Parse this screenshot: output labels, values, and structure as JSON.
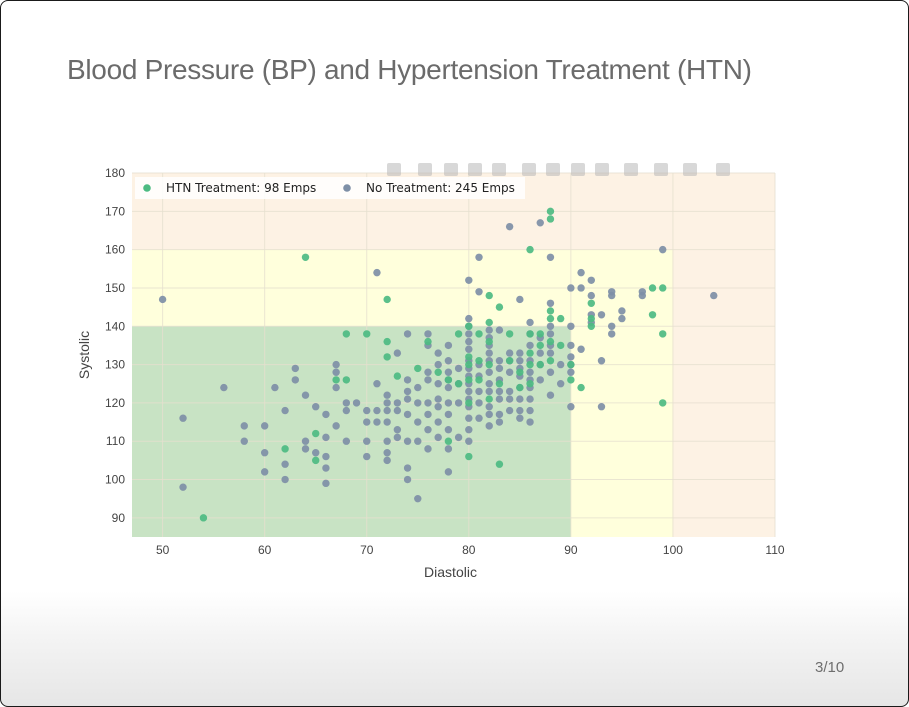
{
  "slide": {
    "title": "Blood Pressure (BP) and Hypertension Treatment (HTN)",
    "page_number": "3/10"
  },
  "colors": {
    "htn": "#4dbb82",
    "no_treatment": "#7e8fa6",
    "zone_normal": "#c8e3c4",
    "zone_elevated": "#ffffdc",
    "zone_high": "#fdf2e4"
  },
  "toolbar_icons": [
    "camera-icon",
    "zoom-icon",
    "pan-icon",
    "box-select-icon",
    "lasso-icon",
    "zoom-in-icon",
    "zoom-out-icon",
    "autoscale-icon",
    "reset-axes-icon",
    "spike-lines-icon",
    "hover-closest-icon",
    "hover-compare-icon",
    "plotly-logo-icon"
  ],
  "chart_data": {
    "type": "scatter",
    "xlabel": "Diastolic",
    "ylabel": "Systolic",
    "xlim": [
      47,
      110
    ],
    "ylim": [
      85,
      180
    ],
    "xticks": [
      50,
      60,
      70,
      80,
      90,
      100,
      110
    ],
    "yticks": [
      90,
      100,
      110,
      120,
      130,
      140,
      150,
      160,
      170,
      180
    ],
    "grid": true,
    "legend_position": "top-left",
    "zones": [
      {
        "x": [
          47,
          110
        ],
        "y": [
          85,
          180
        ],
        "color": "#fdf2e4"
      },
      {
        "x": [
          47,
          100
        ],
        "y": [
          85,
          160
        ],
        "color": "#ffffdc"
      },
      {
        "x": [
          47,
          90
        ],
        "y": [
          85,
          140
        ],
        "color": "#c8e3c4"
      }
    ],
    "series": [
      {
        "name": "HTN Treatment: 98 Emps",
        "color": "#4dbb82",
        "points": [
          [
            54,
            90
          ],
          [
            62,
            108
          ],
          [
            64,
            158
          ],
          [
            65,
            112
          ],
          [
            65,
            105
          ],
          [
            67,
            126
          ],
          [
            68,
            138
          ],
          [
            68,
            126
          ],
          [
            70,
            138
          ],
          [
            72,
            147
          ],
          [
            72,
            136
          ],
          [
            72,
            132
          ],
          [
            73,
            127
          ],
          [
            75,
            129
          ],
          [
            76,
            136
          ],
          [
            77,
            128
          ],
          [
            78,
            110
          ],
          [
            78,
            126
          ],
          [
            79,
            138
          ],
          [
            79,
            125
          ],
          [
            80,
            140
          ],
          [
            80,
            132
          ],
          [
            80,
            130
          ],
          [
            80,
            126
          ],
          [
            80,
            120
          ],
          [
            80,
            106
          ],
          [
            81,
            138
          ],
          [
            81,
            131
          ],
          [
            81,
            126
          ],
          [
            82,
            148
          ],
          [
            82,
            141
          ],
          [
            82,
            136
          ],
          [
            82,
            130
          ],
          [
            82,
            121
          ],
          [
            83,
            145
          ],
          [
            83,
            125
          ],
          [
            83,
            104
          ],
          [
            84,
            138
          ],
          [
            84,
            131
          ],
          [
            85,
            128
          ],
          [
            85,
            124
          ],
          [
            86,
            160
          ],
          [
            86,
            138
          ],
          [
            86,
            133
          ],
          [
            86,
            130
          ],
          [
            86,
            125
          ],
          [
            87,
            138
          ],
          [
            87,
            135
          ],
          [
            87,
            130
          ],
          [
            88,
            170
          ],
          [
            88,
            168
          ],
          [
            88,
            144
          ],
          [
            88,
            142
          ],
          [
            88,
            136
          ],
          [
            88,
            131
          ],
          [
            89,
            142
          ],
          [
            89,
            135
          ],
          [
            90,
            130
          ],
          [
            90,
            126
          ],
          [
            91,
            124
          ],
          [
            92,
            146
          ],
          [
            92,
            142
          ],
          [
            92,
            140
          ],
          [
            98,
            150
          ],
          [
            98,
            143
          ],
          [
            99,
            150
          ],
          [
            99,
            138
          ],
          [
            99,
            120
          ]
        ]
      },
      {
        "name": "No Treatment: 245 Emps",
        "color": "#7e8fa6",
        "points": [
          [
            50,
            147
          ],
          [
            52,
            116
          ],
          [
            52,
            98
          ],
          [
            56,
            124
          ],
          [
            58,
            114
          ],
          [
            58,
            110
          ],
          [
            60,
            114
          ],
          [
            60,
            107
          ],
          [
            60,
            102
          ],
          [
            61,
            124
          ],
          [
            62,
            118
          ],
          [
            62,
            104
          ],
          [
            62,
            100
          ],
          [
            63,
            129
          ],
          [
            63,
            126
          ],
          [
            64,
            122
          ],
          [
            64,
            110
          ],
          [
            64,
            108
          ],
          [
            65,
            119
          ],
          [
            65,
            107
          ],
          [
            66,
            117
          ],
          [
            66,
            111
          ],
          [
            66,
            106
          ],
          [
            66,
            103
          ],
          [
            66,
            99
          ],
          [
            67,
            130
          ],
          [
            67,
            128
          ],
          [
            67,
            124
          ],
          [
            67,
            114
          ],
          [
            68,
            120
          ],
          [
            68,
            118
          ],
          [
            68,
            110
          ],
          [
            69,
            120
          ],
          [
            70,
            118
          ],
          [
            70,
            115
          ],
          [
            70,
            110
          ],
          [
            70,
            106
          ],
          [
            71,
            154
          ],
          [
            71,
            125
          ],
          [
            71,
            118
          ],
          [
            71,
            115
          ],
          [
            72,
            122
          ],
          [
            72,
            120
          ],
          [
            72,
            118
          ],
          [
            72,
            115
          ],
          [
            72,
            110
          ],
          [
            72,
            107
          ],
          [
            72,
            105
          ],
          [
            73,
            133
          ],
          [
            73,
            120
          ],
          [
            73,
            118
          ],
          [
            73,
            113
          ],
          [
            73,
            111
          ],
          [
            74,
            138
          ],
          [
            74,
            126
          ],
          [
            74,
            123
          ],
          [
            74,
            121
          ],
          [
            74,
            117
          ],
          [
            74,
            110
          ],
          [
            74,
            103
          ],
          [
            74,
            100
          ],
          [
            75,
            124
          ],
          [
            75,
            120
          ],
          [
            75,
            115
          ],
          [
            75,
            110
          ],
          [
            75,
            95
          ],
          [
            76,
            138
          ],
          [
            76,
            135
          ],
          [
            76,
            128
          ],
          [
            76,
            126
          ],
          [
            76,
            120
          ],
          [
            76,
            117
          ],
          [
            76,
            113
          ],
          [
            76,
            108
          ],
          [
            77,
            133
          ],
          [
            77,
            130
          ],
          [
            77,
            125
          ],
          [
            77,
            121
          ],
          [
            77,
            119
          ],
          [
            77,
            115
          ],
          [
            77,
            111
          ],
          [
            78,
            135
          ],
          [
            78,
            131
          ],
          [
            78,
            128
          ],
          [
            78,
            126
          ],
          [
            78,
            124
          ],
          [
            78,
            120
          ],
          [
            78,
            117
          ],
          [
            78,
            113
          ],
          [
            78,
            108
          ],
          [
            78,
            102
          ],
          [
            79,
            129
          ],
          [
            79,
            125
          ],
          [
            79,
            120
          ],
          [
            79,
            111
          ],
          [
            80,
            152
          ],
          [
            80,
            142
          ],
          [
            80,
            140
          ],
          [
            80,
            138
          ],
          [
            80,
            136
          ],
          [
            80,
            134
          ],
          [
            80,
            131
          ],
          [
            80,
            129
          ],
          [
            80,
            127
          ],
          [
            80,
            125
          ],
          [
            80,
            123
          ],
          [
            80,
            121
          ],
          [
            80,
            119
          ],
          [
            80,
            116
          ],
          [
            80,
            113
          ],
          [
            80,
            110
          ],
          [
            81,
            158
          ],
          [
            81,
            149
          ],
          [
            81,
            130
          ],
          [
            81,
            127
          ],
          [
            81,
            123
          ],
          [
            81,
            120
          ],
          [
            81,
            116
          ],
          [
            82,
            139
          ],
          [
            82,
            137
          ],
          [
            82,
            135
          ],
          [
            82,
            133
          ],
          [
            82,
            131
          ],
          [
            82,
            128
          ],
          [
            82,
            125
          ],
          [
            82,
            123
          ],
          [
            82,
            119
          ],
          [
            82,
            117
          ],
          [
            82,
            114
          ],
          [
            83,
            139
          ],
          [
            83,
            131
          ],
          [
            83,
            129
          ],
          [
            83,
            126
          ],
          [
            83,
            123
          ],
          [
            83,
            121
          ],
          [
            83,
            117
          ],
          [
            83,
            115
          ],
          [
            84,
            166
          ],
          [
            84,
            133
          ],
          [
            84,
            131
          ],
          [
            84,
            128
          ],
          [
            84,
            123
          ],
          [
            84,
            121
          ],
          [
            84,
            118
          ],
          [
            85,
            147
          ],
          [
            85,
            133
          ],
          [
            85,
            131
          ],
          [
            85,
            129
          ],
          [
            85,
            127
          ],
          [
            85,
            124
          ],
          [
            85,
            121
          ],
          [
            85,
            118
          ],
          [
            85,
            116
          ],
          [
            86,
            141
          ],
          [
            86,
            138
          ],
          [
            86,
            135
          ],
          [
            86,
            131
          ],
          [
            86,
            128
          ],
          [
            86,
            126
          ],
          [
            86,
            124
          ],
          [
            86,
            121
          ],
          [
            86,
            118
          ],
          [
            86,
            115
          ],
          [
            87,
            167
          ],
          [
            87,
            137
          ],
          [
            87,
            133
          ],
          [
            87,
            130
          ],
          [
            87,
            126
          ],
          [
            88,
            158
          ],
          [
            88,
            146
          ],
          [
            88,
            140
          ],
          [
            88,
            138
          ],
          [
            88,
            135
          ],
          [
            88,
            133
          ],
          [
            88,
            128
          ],
          [
            88,
            122
          ],
          [
            89,
            130
          ],
          [
            89,
            125
          ],
          [
            90,
            150
          ],
          [
            90,
            140
          ],
          [
            90,
            135
          ],
          [
            90,
            132
          ],
          [
            90,
            130
          ],
          [
            90,
            128
          ],
          [
            90,
            119
          ],
          [
            91,
            154
          ],
          [
            91,
            150
          ],
          [
            91,
            134
          ],
          [
            92,
            152
          ],
          [
            92,
            148
          ],
          [
            92,
            143
          ],
          [
            92,
            141
          ],
          [
            93,
            143
          ],
          [
            93,
            131
          ],
          [
            93,
            119
          ],
          [
            94,
            149
          ],
          [
            94,
            148
          ],
          [
            94,
            140
          ],
          [
            94,
            138
          ],
          [
            95,
            144
          ],
          [
            95,
            142
          ],
          [
            97,
            149
          ],
          [
            97,
            148
          ],
          [
            99,
            160
          ],
          [
            104,
            148
          ]
        ]
      }
    ]
  }
}
